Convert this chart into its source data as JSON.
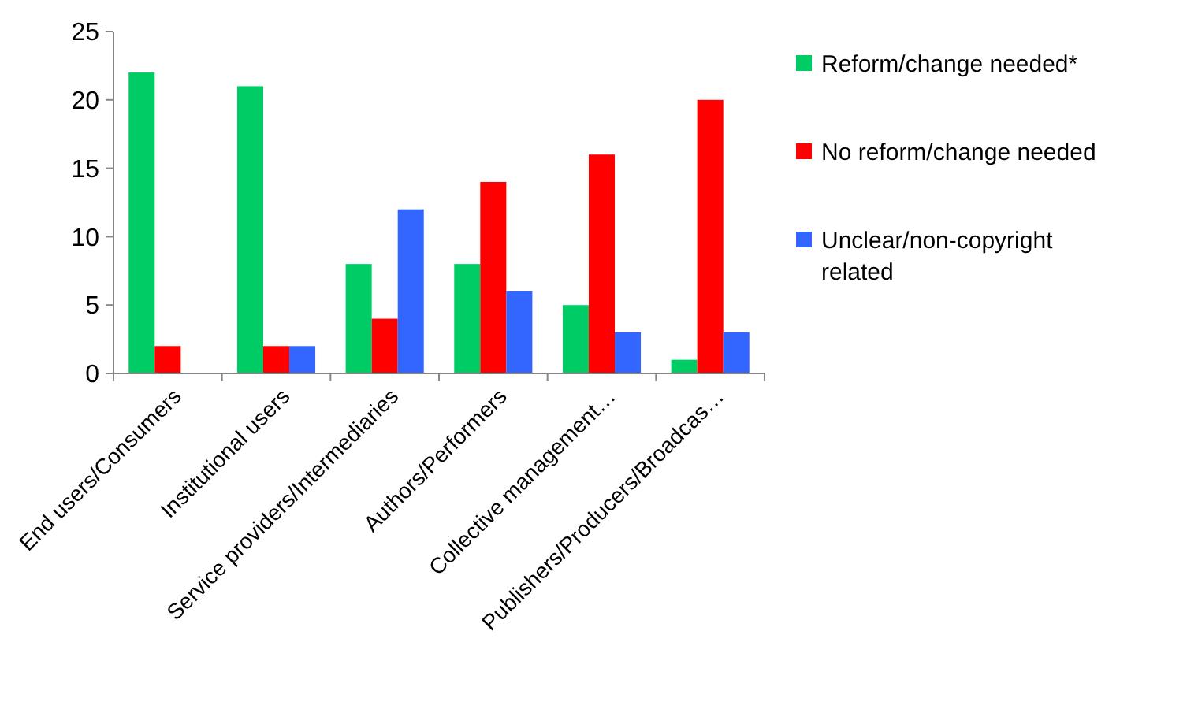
{
  "chart_data": {
    "type": "bar",
    "categories": [
      "End users/Consumers",
      "Institutional users",
      "Service providers/Intermediaries",
      "Authors/Performers",
      "Collective management…",
      "Publishers/Producers/Broadcas…"
    ],
    "series": [
      {
        "name": "Reform/change needed*",
        "color": "#00cc66",
        "values": [
          22,
          21,
          8,
          8,
          5,
          1
        ]
      },
      {
        "name": "No reform/change needed",
        "color": "#ff0000",
        "values": [
          2,
          2,
          4,
          14,
          16,
          20
        ]
      },
      {
        "name": "Unclear/non-copyright related",
        "color": "#3366ff",
        "values": [
          null,
          2,
          12,
          6,
          3,
          3
        ]
      }
    ],
    "ylim": [
      0,
      25
    ],
    "yticks": [
      0,
      5,
      10,
      15,
      20,
      25
    ],
    "grid": false,
    "legend": "right"
  }
}
